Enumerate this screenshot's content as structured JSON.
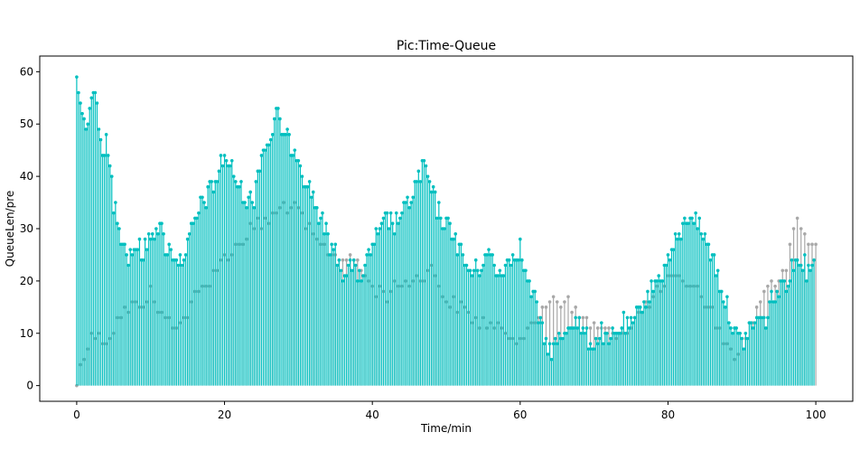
{
  "chart_data": {
    "type": "stem",
    "title": "Pic:Time-Queue",
    "xlabel": "Time/min",
    "ylabel": "QueueLen/pre",
    "xlim": [
      -5,
      105
    ],
    "ylim": [
      -3,
      63
    ],
    "xticks": [
      0,
      20,
      40,
      60,
      80,
      100
    ],
    "yticks": [
      0,
      10,
      20,
      30,
      40,
      50,
      60
    ],
    "grid": false,
    "legend": "none",
    "colors": {
      "primary": "#00bfbf",
      "secondary": "#a8a8a8"
    },
    "envelope_primary": {
      "x": [
        0,
        0.5,
        1,
        1.5,
        2,
        2.3,
        2.8,
        3.3,
        4,
        4.5,
        5,
        5.5,
        6,
        7,
        8,
        9,
        10,
        11,
        12,
        13,
        14,
        15,
        16,
        17,
        18,
        19,
        20,
        21,
        22,
        23,
        24,
        25,
        26,
        27,
        28,
        29,
        30,
        31,
        32,
        33,
        34,
        35,
        36,
        37,
        38,
        39,
        40,
        41,
        42,
        43,
        44,
        45,
        46,
        47,
        48,
        49,
        50,
        51,
        52,
        53,
        54,
        55,
        56,
        57,
        58,
        59,
        60,
        61,
        62,
        63,
        64,
        65,
        66,
        67,
        68,
        69,
        70,
        71,
        72,
        73,
        74,
        75,
        76,
        77,
        78,
        79,
        80,
        81,
        82,
        83,
        84,
        85,
        86,
        87,
        88,
        89,
        90,
        91,
        92,
        93,
        94,
        95,
        96,
        97,
        98,
        99,
        99.8
      ],
      "y": [
        60,
        56,
        52,
        54,
        57,
        60,
        53,
        48,
        48,
        44,
        37,
        35,
        31,
        27,
        29,
        27,
        31,
        33,
        29,
        27,
        26,
        29,
        33,
        37,
        39,
        42,
        46,
        43,
        40,
        37,
        38,
        47,
        48,
        54,
        50,
        48,
        46,
        41,
        38,
        34,
        30,
        27,
        24,
        25,
        23,
        24,
        29,
        31,
        34,
        33,
        35,
        37,
        41,
        44,
        39,
        35,
        33,
        31,
        27,
        24,
        24,
        26,
        27,
        23,
        25,
        27,
        28,
        22,
        18,
        12,
        9,
        10,
        12,
        15,
        13,
        11,
        10,
        12,
        10,
        12,
        14,
        13,
        16,
        19,
        21,
        23,
        26,
        29,
        32,
        35,
        33,
        30,
        27,
        22,
        17,
        12,
        10,
        13,
        15,
        14,
        18,
        20,
        22,
        25,
        27,
        23,
        28
      ]
    },
    "envelope_secondary": {
      "x": [
        0,
        2,
        4,
        6,
        8,
        10,
        12,
        14,
        16,
        18,
        20,
        22,
        24,
        26,
        28,
        30,
        32,
        34,
        36,
        38,
        40,
        42,
        44,
        46,
        48,
        50,
        52,
        54,
        56,
        58,
        60,
        62,
        63,
        64,
        65,
        66,
        67,
        68,
        70,
        72,
        74,
        76,
        78,
        80,
        82,
        84,
        86,
        88,
        89,
        90,
        91,
        92,
        93,
        94,
        95,
        96,
        97,
        97.5,
        98,
        99,
        100
      ],
      "y": [
        2,
        12,
        10,
        15,
        17,
        19,
        14,
        13,
        18,
        22,
        26,
        29,
        32,
        33,
        36,
        35,
        30,
        27,
        26,
        25,
        20,
        19,
        21,
        22,
        24,
        18,
        16,
        14,
        13,
        12,
        11,
        13,
        17,
        18,
        18,
        18,
        16,
        15,
        13,
        11,
        12,
        15,
        18,
        21,
        22,
        20,
        15,
        9,
        7,
        10,
        13,
        16,
        20,
        22,
        21,
        24,
        30,
        33,
        31,
        29,
        29
      ]
    }
  }
}
